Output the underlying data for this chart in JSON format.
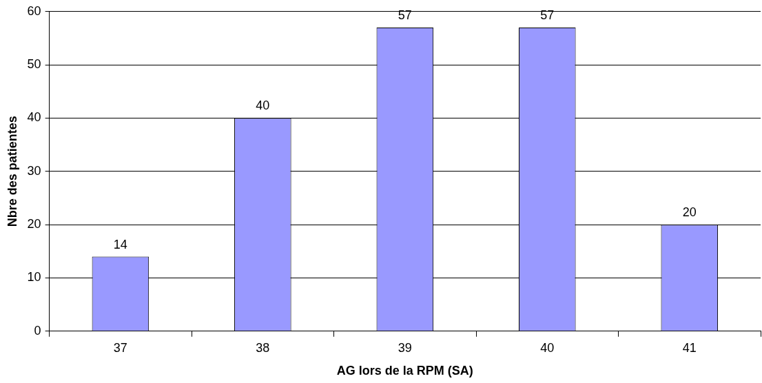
{
  "chart_data": {
    "type": "bar",
    "xlabel": "AG lors de la RPM (SA)",
    "ylabel": "Nbre des patientes",
    "categories": [
      "37",
      "38",
      "39",
      "40",
      "41"
    ],
    "values": [
      14,
      40,
      57,
      57,
      20
    ],
    "color": "#9999ff",
    "ylim": [
      0,
      60
    ],
    "yticks": [
      0,
      10,
      20,
      30,
      40,
      50,
      60
    ],
    "grid": "y",
    "data_labels": true
  }
}
